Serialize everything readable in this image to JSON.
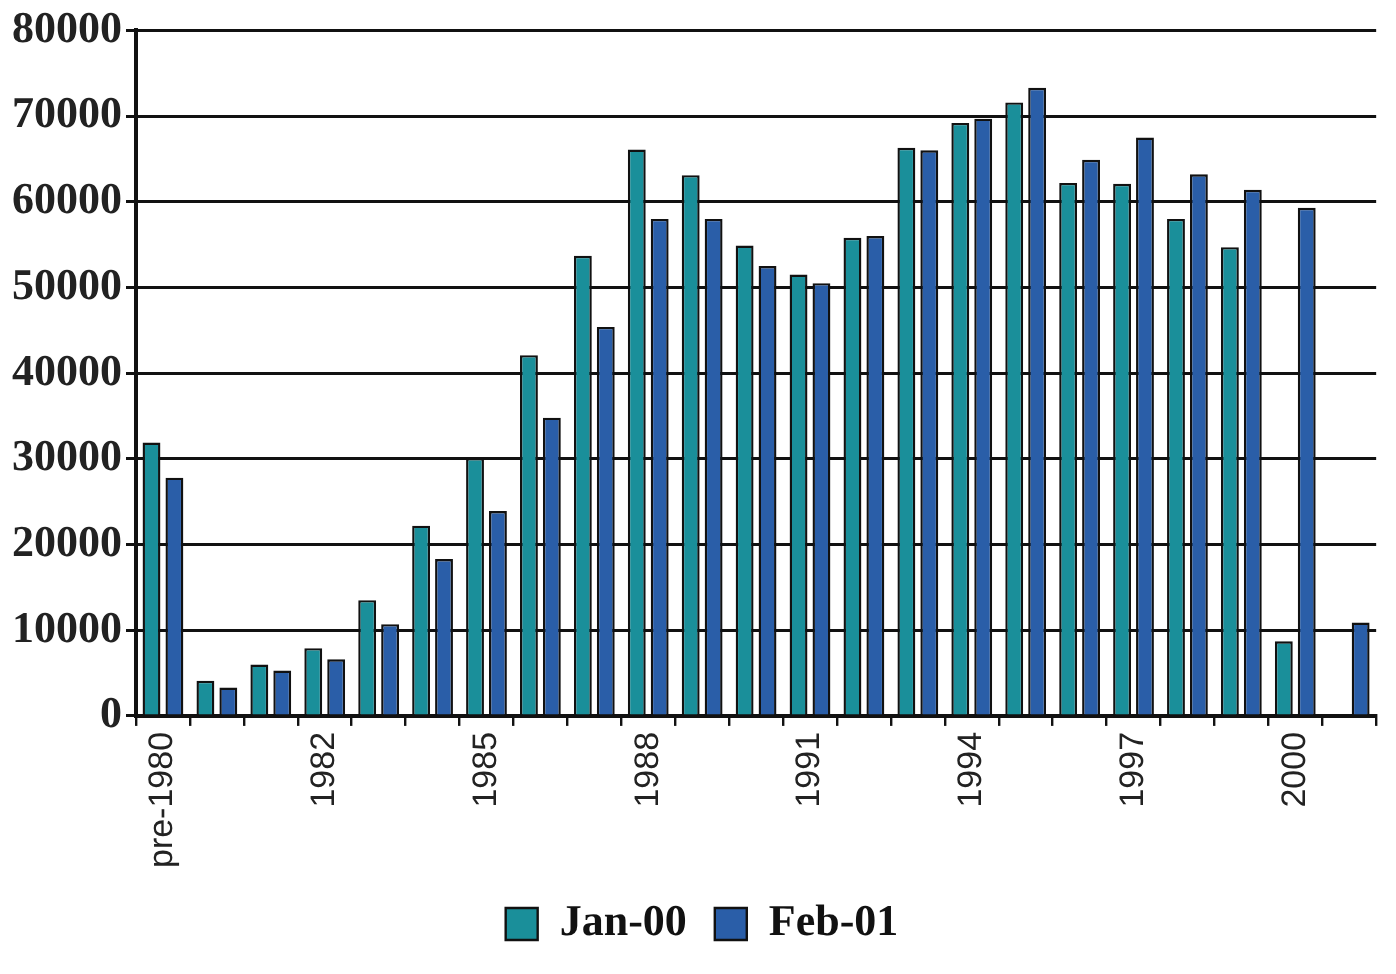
{
  "chart_data": {
    "type": "bar",
    "categories": [
      "pre-1980",
      null,
      null,
      "1982",
      null,
      null,
      "1985",
      null,
      null,
      "1988",
      null,
      null,
      "1991",
      null,
      null,
      "1994",
      null,
      null,
      "1997",
      null,
      null,
      "2000",
      null
    ],
    "series": [
      {
        "name": "Jan-00",
        "color": "#1a8f9a",
        "values": [
          31900,
          4100,
          6000,
          7900,
          13500,
          22200,
          30100,
          42100,
          53700,
          66100,
          63100,
          54900,
          51500,
          55800,
          66300,
          69200,
          71600,
          62200,
          62100,
          58000,
          54700,
          8700,
          null
        ]
      },
      {
        "name": "Feb-01",
        "color": "#2a5ea8",
        "values": [
          27800,
          3300,
          5300,
          6600,
          10700,
          18300,
          23900,
          34800,
          45400,
          58000,
          58000,
          52500,
          50500,
          56000,
          66000,
          69700,
          73300,
          64900,
          67500,
          63200,
          61400,
          59300,
          10900
        ]
      }
    ],
    "ylim": [
      0,
      80000
    ],
    "yticks": [
      0,
      10000,
      20000,
      30000,
      40000,
      50000,
      60000,
      70000,
      80000
    ],
    "grid": "y",
    "legend": "bottom"
  }
}
